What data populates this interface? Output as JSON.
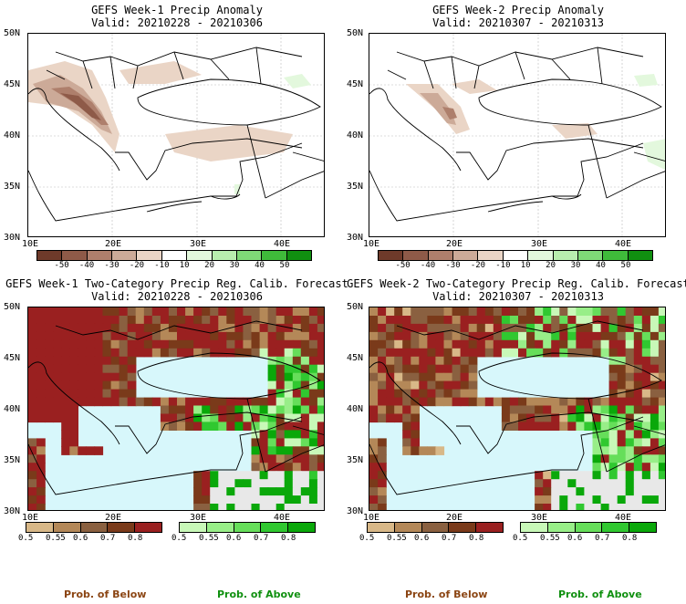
{
  "panels": [
    {
      "title1": "GEFS Week-1 Precip Anomaly",
      "title2": "Valid: 20210228 - 20210306"
    },
    {
      "title1": "GEFS Week-2 Precip Anomaly",
      "title2": "Valid: 20210307 - 20210313"
    },
    {
      "title1": "GEFS Week-1 Two-Category Precip Reg. Calib. Forecast",
      "title2": "Valid: 20210228 - 20210306"
    },
    {
      "title1": "GEFS Week-2 Two-Category Precip Reg. Calib. Forecast",
      "title2": "Valid: 20210307 - 20210313"
    }
  ],
  "lat_ticks": [
    "50N",
    "45N",
    "40N",
    "35N",
    "30N"
  ],
  "lon_ticks": [
    "10E",
    "20E",
    "30E",
    "40E"
  ],
  "anomaly_colorbar": {
    "labels": [
      "-50",
      "-40",
      "-30",
      "-20",
      "-10",
      "10",
      "20",
      "30",
      "40",
      "50"
    ],
    "colors": [
      "#6e3a2a",
      "#8e5a48",
      "#ae7f6c",
      "#ccaa98",
      "#ead5c6",
      "#ffffff",
      "#e3f8dd",
      "#b8eeae",
      "#7fd977",
      "#3fbb3a",
      "#108f10"
    ]
  },
  "below_colorbar": {
    "labels": [
      "0.5",
      "0.55",
      "0.6",
      "0.7",
      "0.8"
    ],
    "colors": [
      "#d8b888",
      "#b48858",
      "#8a6040",
      "#7a3a1a",
      "#9a2020"
    ]
  },
  "above_colorbar": {
    "labels": [
      "0.5",
      "0.55",
      "0.6",
      "0.7",
      "0.8"
    ],
    "colors": [
      "#c8f8b8",
      "#98ee88",
      "#66de5a",
      "#30c830",
      "#0aa80a"
    ]
  },
  "footer": {
    "below": "Prob. of Below",
    "above": "Prob. of Above"
  },
  "colors": {
    "sea": "#d7f7fb",
    "land_grey": "#e8e8e8",
    "below_label": "#8b4513",
    "above_label": "#109010"
  }
}
